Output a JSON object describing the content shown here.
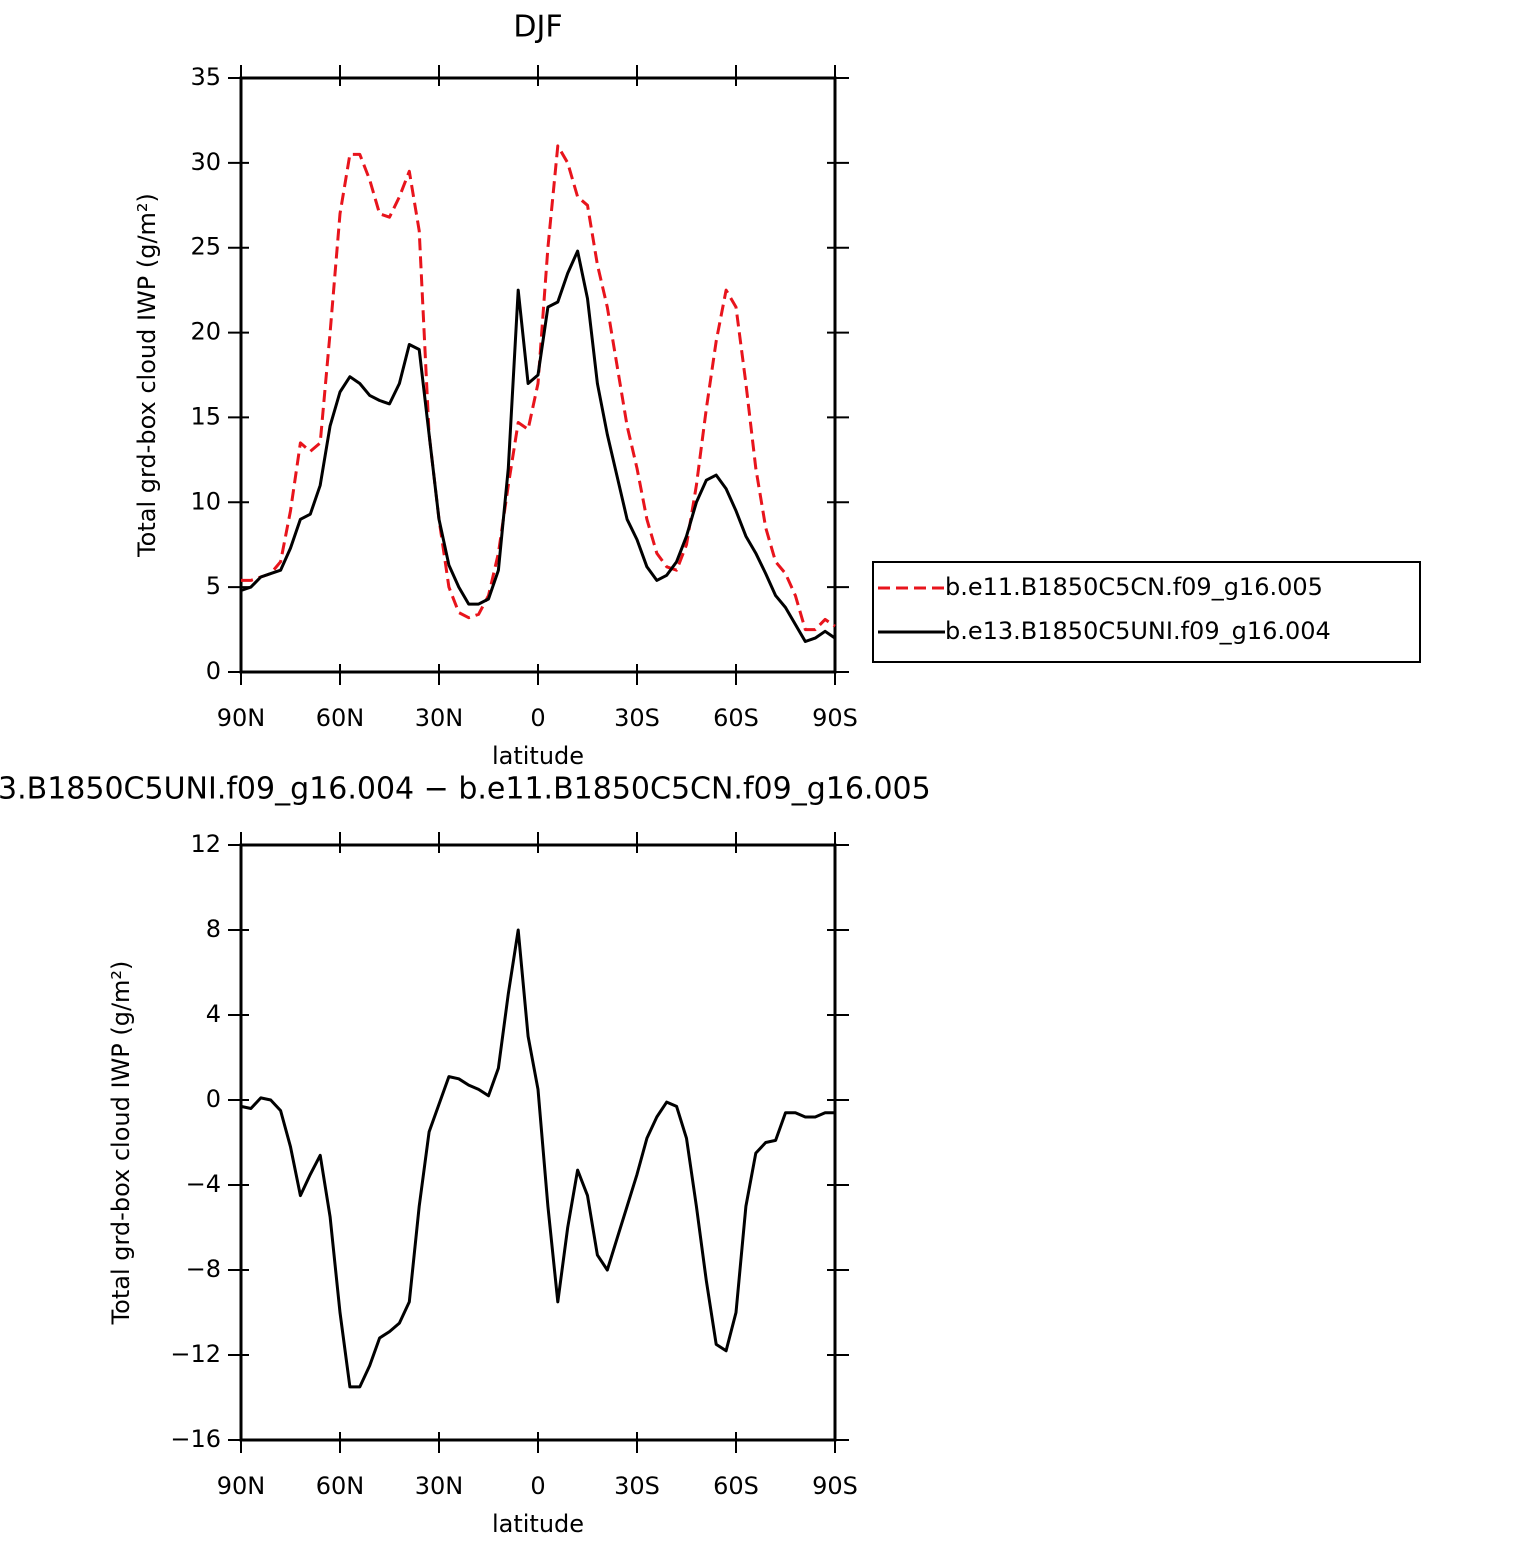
{
  "chart_data": [
    {
      "type": "line",
      "title": "DJF",
      "xlabel": "latitude",
      "ylabel": "Total grd-box cloud IWP (g/m²)",
      "x": [
        90,
        87,
        84,
        81,
        78,
        75,
        72,
        69,
        66,
        63,
        60,
        57,
        54,
        51,
        48,
        45,
        42,
        39,
        36,
        33,
        30,
        27,
        24,
        21,
        18,
        15,
        12,
        9,
        6,
        3,
        0,
        -3,
        -6,
        -9,
        -12,
        -15,
        -18,
        -21,
        -24,
        -27,
        -30,
        -33,
        -36,
        -39,
        -42,
        -45,
        -48,
        -51,
        -54,
        -57,
        -60,
        -63,
        -66,
        -69,
        -72,
        -75,
        -78,
        -81,
        -84,
        -87,
        -90
      ],
      "xlim": [
        90,
        -90
      ],
      "xticks": [
        {
          "value": 90,
          "label": "90N"
        },
        {
          "value": 60,
          "label": "60N"
        },
        {
          "value": 30,
          "label": "30N"
        },
        0,
        {
          "value": -30,
          "label": "30S"
        },
        {
          "value": -60,
          "label": "60S"
        },
        {
          "value": -90,
          "label": "90S"
        }
      ],
      "ylim": [
        0,
        35
      ],
      "yticks": [
        0,
        5,
        10,
        15,
        20,
        25,
        30,
        35
      ],
      "legend": "outside-right",
      "series": [
        {
          "name": "b.e11.B1850C5CN.f09_g16.005",
          "color": "#e8141c",
          "linestyle": "dashed",
          "values": [
            5.4,
            5.4,
            5.6,
            5.8,
            6.5,
            9.5,
            13.5,
            13.0,
            13.5,
            20,
            27,
            30.5,
            30.5,
            29,
            27,
            26.8,
            28,
            29.5,
            26,
            14,
            9,
            5,
            3.5,
            3.2,
            3.4,
            4.5,
            7,
            11,
            14.7,
            14.3,
            17,
            25,
            31,
            30,
            28,
            27.5,
            24,
            21.5,
            18,
            14.5,
            12,
            9,
            7,
            6.2,
            6,
            7.5,
            11,
            15.5,
            19.5,
            22.5,
            21.5,
            17,
            12,
            8.5,
            6.5,
            5.8,
            4.5,
            2.5,
            2.5,
            3.1,
            2.7
          ]
        },
        {
          "name": "b.e13.B1850C5UNI.f09_g16.004",
          "color": "#000000",
          "linestyle": "solid",
          "values": [
            4.8,
            5.0,
            5.6,
            5.8,
            6.0,
            7.3,
            9.0,
            9.3,
            11,
            14.5,
            16.5,
            17.4,
            17,
            16.3,
            16,
            15.8,
            17,
            19.3,
            19,
            14,
            9,
            6.3,
            5,
            4,
            4,
            4.3,
            6,
            12,
            22.5,
            17,
            17.5,
            21.5,
            21.8,
            23.5,
            24.8,
            22,
            17,
            14,
            11.5,
            9,
            7.8,
            6.2,
            5.4,
            5.7,
            6.5,
            8,
            10,
            11.3,
            11.6,
            10.8,
            9.5,
            8,
            7,
            5.8,
            4.5,
            3.8,
            2.8,
            1.8,
            2.0,
            2.4,
            2.0
          ]
        }
      ]
    },
    {
      "type": "line",
      "title": "3.B1850C5UNI.f09_g16.004 − b.e11.B1850C5CN.f09_g16.005",
      "xlabel": "latitude",
      "ylabel": "Total grd-box cloud IWP (g/m²)",
      "x": [
        90,
        87,
        84,
        81,
        78,
        75,
        72,
        69,
        66,
        63,
        60,
        57,
        54,
        51,
        48,
        45,
        42,
        39,
        36,
        33,
        30,
        27,
        24,
        21,
        18,
        15,
        12,
        9,
        6,
        3,
        0,
        -3,
        -6,
        -9,
        -12,
        -15,
        -18,
        -21,
        -24,
        -27,
        -30,
        -33,
        -36,
        -39,
        -42,
        -45,
        -48,
        -51,
        -54,
        -57,
        -60,
        -63,
        -66,
        -69,
        -72,
        -75,
        -78,
        -81,
        -84,
        -87,
        -90
      ],
      "xlim": [
        90,
        -90
      ],
      "xticks": [
        {
          "value": 90,
          "label": "90N"
        },
        {
          "value": 60,
          "label": "60N"
        },
        {
          "value": 30,
          "label": "30N"
        },
        0,
        {
          "value": -30,
          "label": "30S"
        },
        {
          "value": -60,
          "label": "60S"
        },
        {
          "value": -90,
          "label": "90S"
        }
      ],
      "ylim": [
        -16,
        12
      ],
      "yticks": [
        {
          "value": -16,
          "label": "−16"
        },
        {
          "value": -12,
          "label": "−12"
        },
        {
          "value": -8,
          "label": "−8"
        },
        {
          "value": -4,
          "label": "−4"
        },
        0,
        4,
        8,
        12
      ],
      "series": [
        {
          "color": "#000000",
          "linestyle": "solid",
          "values": [
            -0.3,
            -0.4,
            0.1,
            0,
            -0.5,
            -2.2,
            -4.5,
            -3.5,
            -2.6,
            -5.5,
            -10,
            -13.5,
            -13.5,
            -12.5,
            -11.2,
            -10.9,
            -10.5,
            -9.5,
            -5,
            -1.5,
            -0.2,
            1.1,
            1.0,
            0.7,
            0.5,
            0.2,
            1.5,
            5,
            8.0,
            3.0,
            0.5,
            -5,
            -9.5,
            -6,
            -3.3,
            -4.5,
            -7.3,
            -8.0,
            -6.5,
            -5,
            -3.5,
            -1.8,
            -0.8,
            -0.1,
            -0.3,
            -1.8,
            -5,
            -8.5,
            -11.5,
            -11.8,
            -10,
            -5,
            -2.5,
            -2,
            -1.9,
            -0.6,
            -0.6,
            -0.8,
            -0.8,
            -0.6,
            -0.6
          ]
        }
      ]
    }
  ]
}
